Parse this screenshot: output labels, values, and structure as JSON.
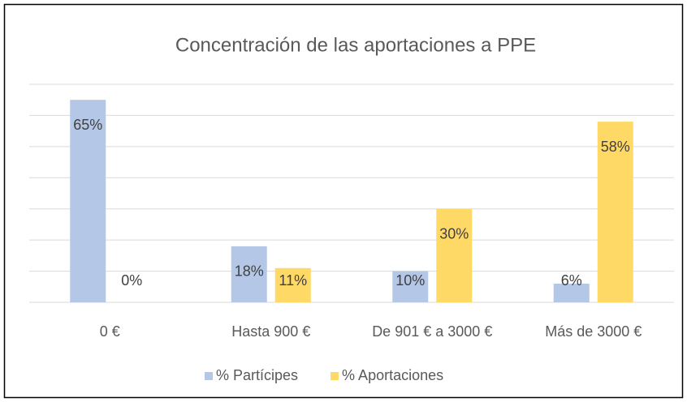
{
  "chart_data": {
    "type": "bar",
    "title": "Concentración de las aportaciones a PPE",
    "categories": [
      "0 €",
      "Hasta 900 €",
      "De 901 € a 3000 €",
      "Más de 3000 €"
    ],
    "series": [
      {
        "name": "% Partícipes",
        "color": "#b4c7e7",
        "values": [
          65,
          18,
          10,
          6
        ],
        "value_labels": [
          "65%",
          "18%",
          "10%",
          "6%"
        ]
      },
      {
        "name": "% Aportaciones",
        "color": "#ffd966",
        "values": [
          0,
          11,
          30,
          58
        ],
        "value_labels": [
          "0%",
          "11%",
          "30%",
          "58%"
        ]
      }
    ],
    "ylim": [
      0,
      70
    ],
    "yticks": [
      0,
      10,
      20,
      30,
      40,
      50,
      60,
      70
    ],
    "grid": true,
    "legend": "bottom"
  }
}
